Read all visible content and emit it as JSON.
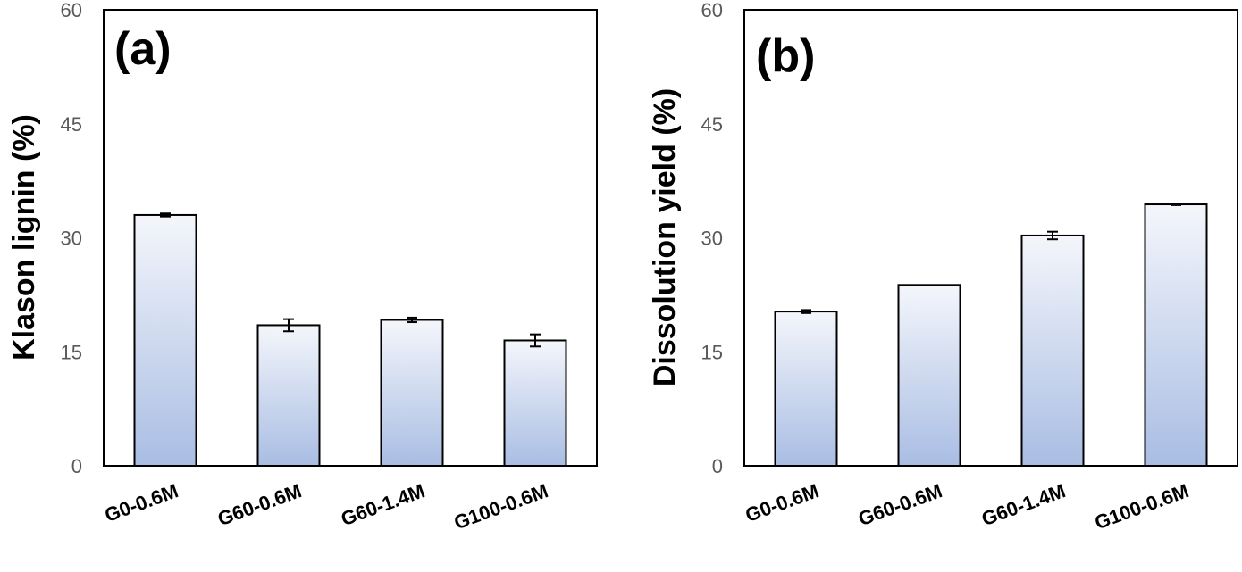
{
  "chart_data": [
    {
      "type": "bar",
      "panel_label": "(a)",
      "title": "",
      "xlabel": "",
      "ylabel": "Klason lignin (%)",
      "ylim": [
        0,
        60
      ],
      "yticks": [
        "0",
        "15",
        "30",
        "45",
        "60"
      ],
      "ytick_values": [
        0,
        15,
        30,
        45,
        60
      ],
      "categories": [
        "G0-0.6M",
        "G60-0.6M",
        "G60-1.4M",
        "G100-0.6M"
      ],
      "values": [
        33.0,
        18.5,
        19.2,
        16.5
      ],
      "errors": [
        0.2,
        0.8,
        0.3,
        0.8
      ],
      "grid": false
    },
    {
      "type": "bar",
      "panel_label": "(b)",
      "title": "",
      "xlabel": "",
      "ylabel": "Dissolution yield (%)",
      "ylim": [
        0,
        60
      ],
      "yticks": [
        "0",
        "15",
        "30",
        "45",
        "60"
      ],
      "ytick_values": [
        0,
        15,
        30,
        45,
        60
      ],
      "categories": [
        "G0-0.6M",
        "G60-0.6M",
        "G60-1.4M",
        "G100-0.6M"
      ],
      "values": [
        20.3,
        23.8,
        30.3,
        34.4
      ],
      "errors": [
        0.2,
        0.0,
        0.5,
        0.1
      ],
      "grid": false
    }
  ],
  "style": {
    "bar_top_color": "#f4f6fb",
    "bar_bottom_color": "#a9bde3",
    "axis_color": "#000000",
    "tick_label_color": "#595959"
  }
}
